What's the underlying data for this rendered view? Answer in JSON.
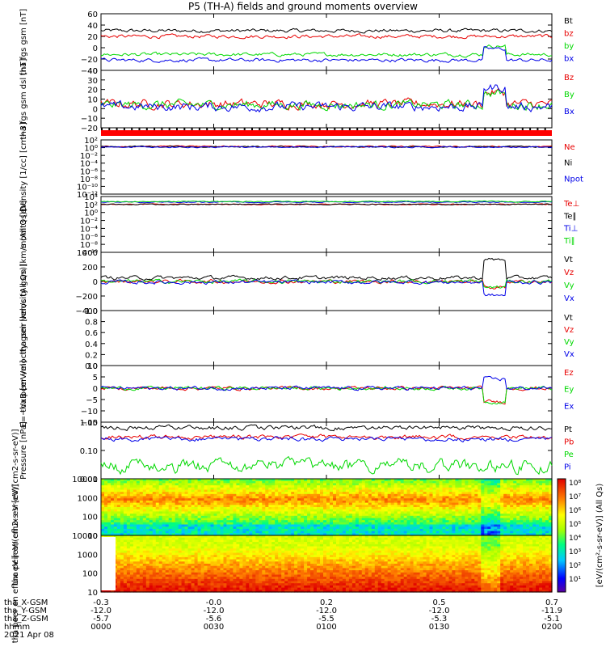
{
  "title": "P5 (TH-A) fields and ground moments overview",
  "colors": {
    "black": "#000000",
    "red": "#e80000",
    "green": "#00d800",
    "blue": "#0000e8"
  },
  "footer": {
    "rows": [
      {
        "label": "tha_X-GSM",
        "values": [
          "-0.3",
          "-0.0",
          "0.2",
          "0.5",
          "0.7"
        ]
      },
      {
        "label": "tha_Y-GSM",
        "values": [
          "-12.0",
          "-12.0",
          "-12.0",
          "-12.0",
          "-11.9"
        ]
      },
      {
        "label": "tha_Z-GSM",
        "values": [
          "-5.7",
          "-5.6",
          "-5.5",
          "-5.3",
          "-5.1"
        ]
      },
      {
        "label": "hhmm",
        "values": [
          "0000",
          "0030",
          "0100",
          "0130",
          "0200"
        ]
      }
    ],
    "date": "2021 Apr 08"
  },
  "colorbar": {
    "ticks": [
      "10⁸",
      "10⁷",
      "10⁶",
      "10⁵",
      "10⁴",
      "10³",
      "10²",
      "10¹"
    ],
    "ticks2": [
      "10⁶",
      "10⁵",
      "10⁴",
      "10³"
    ],
    "label": "[eV/(cm²-s-sr-eV)] (All Qs)"
  },
  "chart_data": [
    {
      "type": "line",
      "ylabel": "tha fgs gsm [nT]",
      "ylim": [
        -40,
        60
      ],
      "yticks": [
        "60",
        "40",
        "20",
        "0",
        "−20",
        "−40"
      ],
      "series": [
        {
          "name": "Bt",
          "value": 30
        },
        {
          "name": "bz",
          "value": 20
        },
        {
          "name": "by",
          "value": -12
        },
        {
          "name": "bx",
          "value": -22
        }
      ]
    },
    {
      "type": "line",
      "ylabel": "tha fgs gsm dsl [nT]",
      "ylim": [
        -20,
        40
      ],
      "yticks": [
        "40",
        "30",
        "20",
        "10",
        "0",
        "−10",
        "−20"
      ],
      "series": [
        {
          "name": "Bz",
          "value": 5
        },
        {
          "name": "By",
          "value": 4
        },
        {
          "name": "Bx",
          "value": 2
        }
      ]
    },
    {
      "type": "line",
      "ylabel": "Density [1/cc] [cm−3]",
      "ylim": "log",
      "yticks": [
        "10²",
        "10⁰",
        "10⁻²",
        "10⁻⁴",
        "10⁻⁶",
        "10⁻⁸",
        "10⁻¹⁰",
        "10⁻¹²"
      ],
      "series": [
        {
          "name": "Ne",
          "value": "~1"
        },
        {
          "name": "Ni",
          "value": "~1"
        },
        {
          "name": "Npot",
          "value": "~1"
        }
      ]
    },
    {
      "type": "line",
      "ylabel": "momt3 [eV]",
      "ylim": "log",
      "yticks": [
        "10⁴",
        "10²",
        "10⁰",
        "10⁻²",
        "10⁻⁴",
        "10⁻⁶",
        "10⁻⁸",
        "10⁻¹⁰"
      ],
      "series": [
        {
          "name": "Te⊥",
          "value": "~100"
        },
        {
          "name": "Te∥",
          "value": "~100"
        },
        {
          "name": "Ti⊥",
          "value": "~1000"
        },
        {
          "name": "Ti∥",
          "value": "~1000"
        }
      ]
    },
    {
      "type": "line",
      "ylabel": "tha peir velocity gsm [km/s (All Qs)]",
      "ylim": [
        -400,
        400
      ],
      "yticks": [
        "400",
        "200",
        "0",
        "−200",
        "−400"
      ],
      "series": [
        {
          "name": "Vt",
          "value": 50
        },
        {
          "name": "Vz",
          "value": 0
        },
        {
          "name": "Vy",
          "value": 0
        },
        {
          "name": "Vx",
          "value": -10
        }
      ]
    },
    {
      "type": "line",
      "ylabel": "tha peer velocity gsm [km/s (All Qs)]",
      "ylim": [
        0,
        1
      ],
      "yticks": [
        "1.0",
        "0.8",
        "0.6",
        "0.4",
        "0.2",
        "0.0"
      ],
      "series": [
        {
          "name": "Vt"
        },
        {
          "name": "Vz"
        },
        {
          "name": "Vy"
        },
        {
          "name": "Vx"
        }
      ]
    },
    {
      "type": "line",
      "ylabel": "E=−VxB [mV/m]",
      "ylim": [
        -15,
        10
      ],
      "yticks": [
        "10",
        "5",
        "0",
        "−5",
        "−10",
        "−15"
      ],
      "series": [
        {
          "name": "Ez",
          "value": 0
        },
        {
          "name": "Ey",
          "value": 0
        },
        {
          "name": "Ex",
          "value": 0
        }
      ]
    },
    {
      "type": "line",
      "ylabel": "Pressure [nPa]",
      "ylim": "log",
      "yticks": [
        "1.00",
        "0.10",
        "0.01"
      ],
      "series": [
        {
          "name": "Pt",
          "value": 0.6
        },
        {
          "name": "Pb",
          "value": 0.35
        },
        {
          "name": "Pe",
          "value": 0.03
        },
        {
          "name": "Pi",
          "value": 0.25
        }
      ]
    },
    {
      "type": "heatmap",
      "ylabel": "tha peir en eflux eV [eV/(cm2-s-sr-eV)]",
      "yticks": [
        "10000",
        "1000",
        "100",
        "10"
      ]
    },
    {
      "type": "heatmap",
      "ylabel": "tha peer en eflux eV [eV/(cm2-s-sr-eV)]",
      "yticks": [
        "10000",
        "1000",
        "100",
        "10"
      ]
    }
  ]
}
